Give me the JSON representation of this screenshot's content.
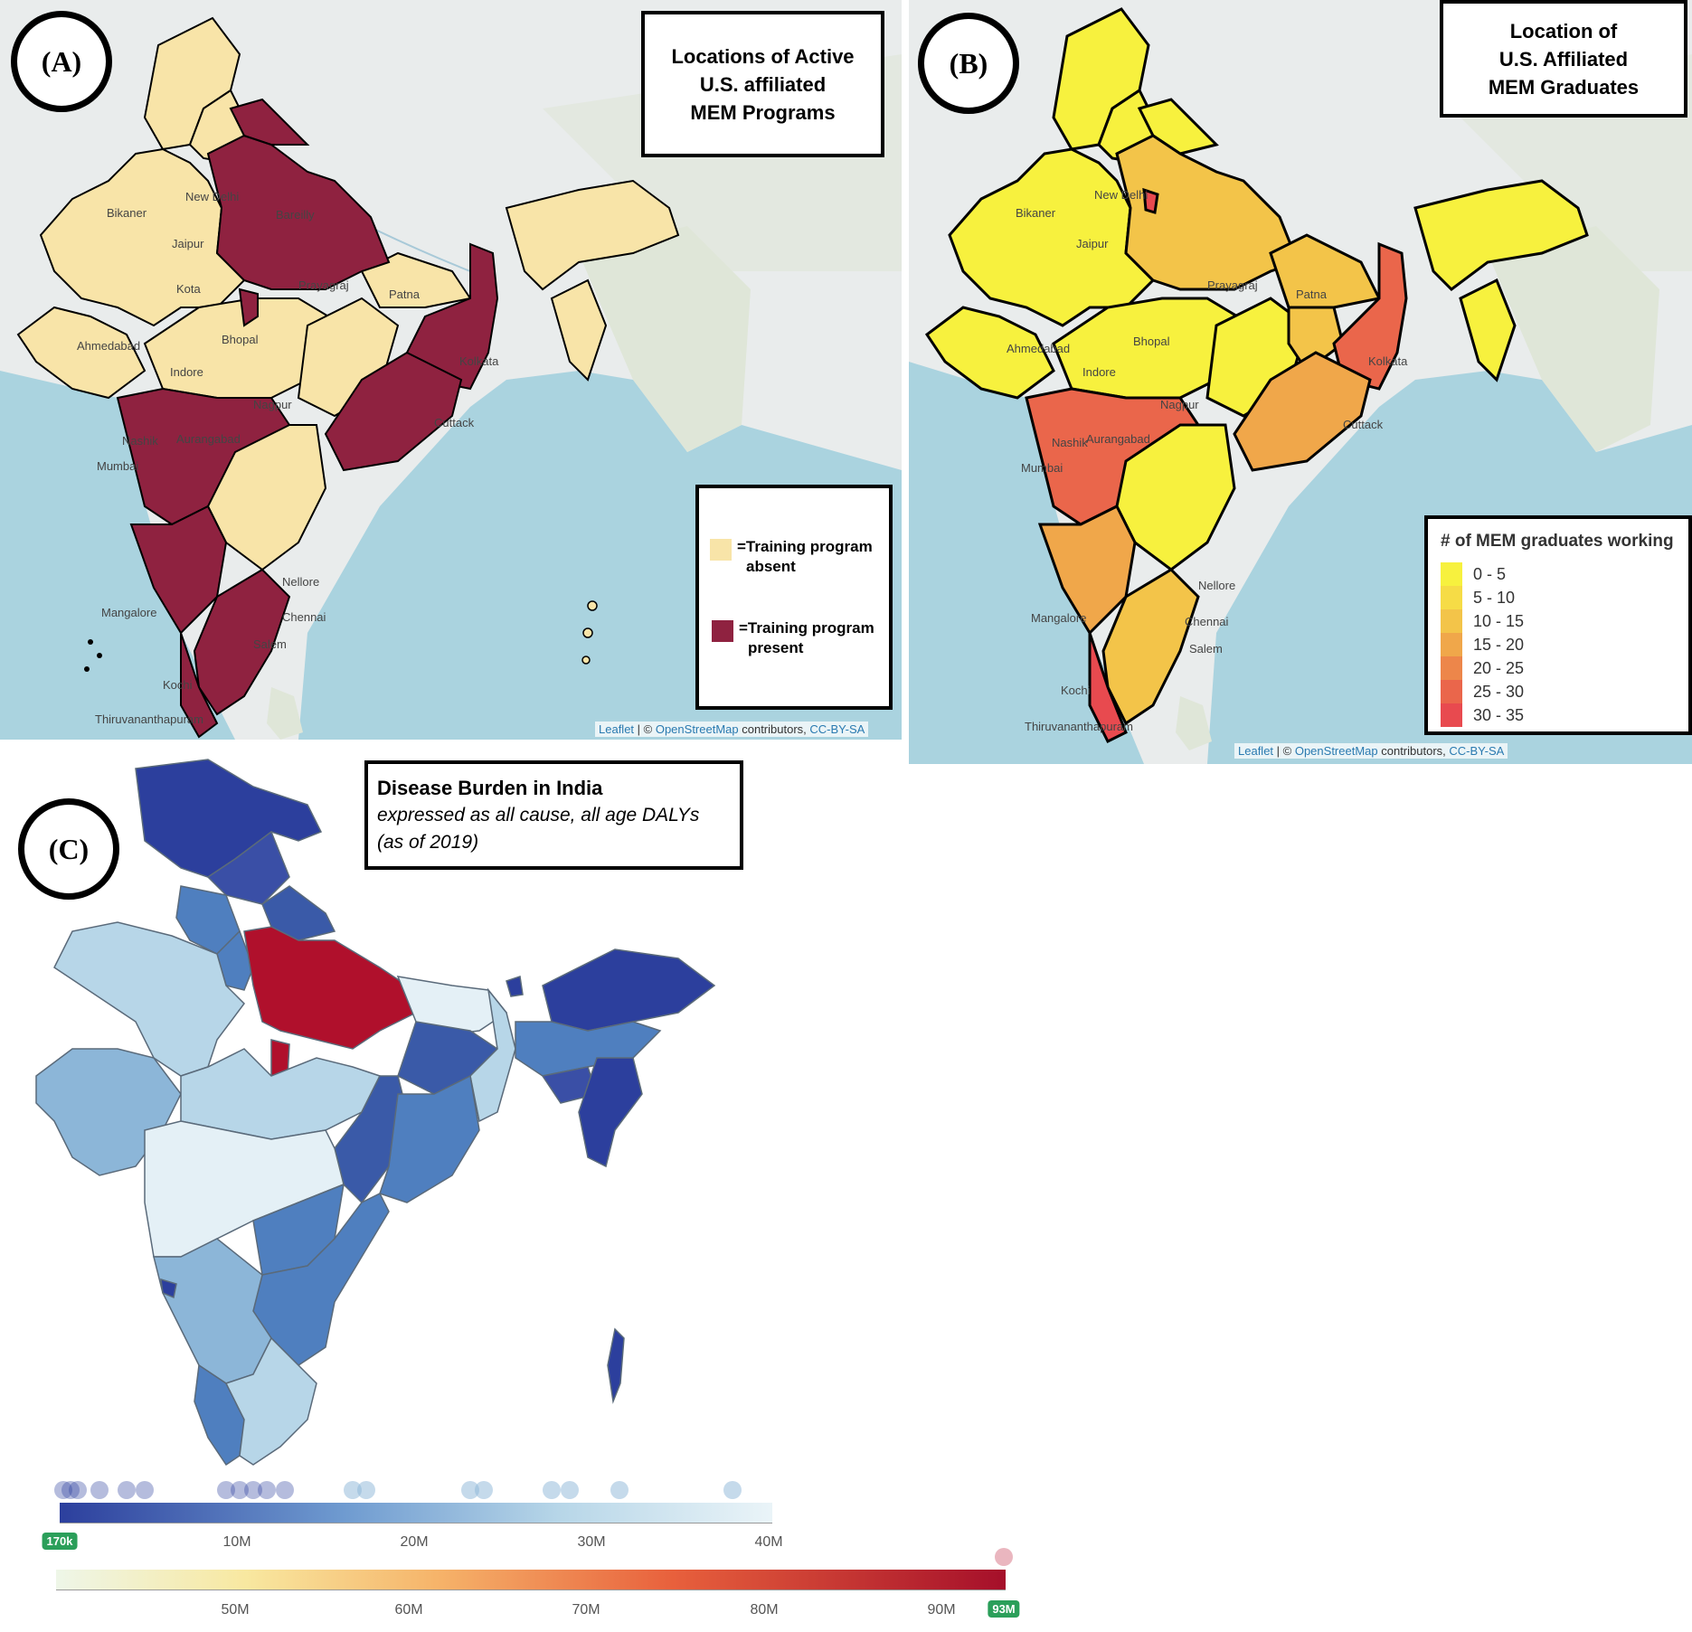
{
  "panel_a": {
    "label": "(A)",
    "title_line1": "Locations of Active",
    "title_line2": "U.S. affiliated",
    "title_line3": "MEM Programs",
    "legend": {
      "absent_line1": "=Training program",
      "absent_line2": "absent",
      "present_line1": "=Training program",
      "present_line2": "present",
      "absent_color": "#f8e4a8",
      "present_color": "#8f2240"
    },
    "attribution": {
      "leaflet": "Leaflet",
      "sep": " | © ",
      "osm": "OpenStreetMap",
      "contrib": " contributors, ",
      "license": "CC-BY-SA"
    },
    "cities": [
      "New Delhi",
      "Jaipur",
      "Bikaner",
      "Prayagraj",
      "Patna",
      "Kolkata",
      "Bhopal",
      "Indore",
      "Ahmedabad",
      "Nagpur",
      "Aurangabad",
      "Nashik",
      "Mumbai",
      "Nellore",
      "Chennai",
      "Mangalore",
      "Kochi",
      "Thiruvananthapuram",
      "Cuttack",
      "Bareilly",
      "Kota",
      "Salem"
    ]
  },
  "panel_b": {
    "label": "(B)",
    "title_line1": "Location of",
    "title_line2": "U.S. Affiliated",
    "title_line3": "MEM Graduates",
    "legend_title": "# of MEM graduates working",
    "legend_items": [
      {
        "label": "0 - 5",
        "color": "#f7f13e"
      },
      {
        "label": "5 - 10",
        "color": "#f6dc46"
      },
      {
        "label": "10 - 15",
        "color": "#f3c449"
      },
      {
        "label": "15 - 20",
        "color": "#f0a74a"
      },
      {
        "label": "20 - 25",
        "color": "#ed864a"
      },
      {
        "label": "25 - 30",
        "color": "#ea664b"
      },
      {
        "label": "30 - 35",
        "color": "#e84a4f"
      }
    ],
    "attribution": {
      "leaflet": "Leaflet",
      "sep": " | © ",
      "osm": "OpenStreetMap",
      "contrib": " contributors, ",
      "license": "CC-BY-SA"
    },
    "cities": [
      "New Delhi",
      "Jaipur",
      "Bikaner",
      "Prayagraj",
      "Patna",
      "Kolkata",
      "Bhopal",
      "Indore",
      "Ahmedabad",
      "Nagpur",
      "Aurangabad",
      "Nashik",
      "Mumbai",
      "Nellore",
      "Chennai",
      "Mangalore",
      "Kochi",
      "Thiruvananthapuram",
      "Cuttack",
      "Salem"
    ]
  },
  "panel_c": {
    "label": "(C)",
    "title_bold": "Disease Burden in India",
    "subtitle_line1": "expressed as all cause, all age DALYs",
    "subtitle_line2": "(as of 2019)",
    "scale1": {
      "ticks": [
        "10M",
        "20M",
        "30M",
        "40M"
      ],
      "min_badge": "170k",
      "gradient_start": "#2c3f9d",
      "gradient_end": "#eaf4f8"
    },
    "scale2": {
      "ticks": [
        "50M",
        "60M",
        "70M",
        "80M",
        "90M"
      ],
      "max_badge": "93M",
      "gradient_start": "#eef6e8",
      "gradient_end": "#a50f2a"
    },
    "colors": {
      "darkest": "#2c3f9d",
      "dark": "#3a5aa8",
      "mid": "#4f7fbf",
      "light": "#8cb6d8",
      "lighter": "#b7d6e8",
      "pale": "#e4f0f6",
      "max": "#b0102c"
    }
  }
}
